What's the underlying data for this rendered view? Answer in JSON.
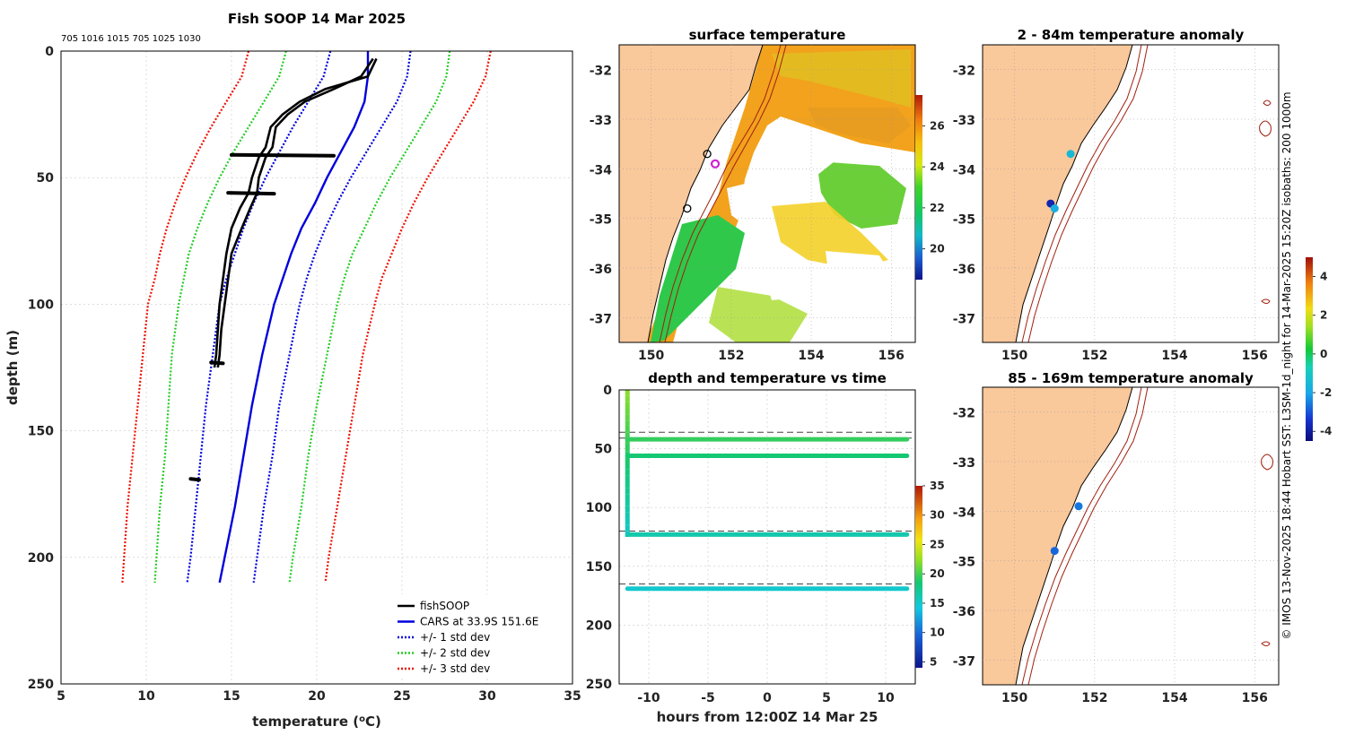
{
  "panels": {
    "profile_title": "Fish SOOP 14 Mar 2025",
    "profile_header": "705 1016 1015 705 1025 1030",
    "sst_title": "surface temperature",
    "anom1_title": "2 - 84m temperature anomaly",
    "anom2_title": "85 - 169m temperature anomaly",
    "timeseries_title": "depth and temperature vs time",
    "side_caption": "© IMOS 13-Nov-2025 18:44 Hobart SST: L3SM-1d_night for 14-Mar-2025 15:20Z isobaths: 200  1000m"
  },
  "colors": {
    "land": "#f9c89b",
    "fishsoop": "#000000",
    "cars": "#0000dd",
    "std1": "#0000dd",
    "std2": "#22cc22",
    "std3": "#ee1100",
    "isobath": "#a02010",
    "grid": "#c8c8c8"
  },
  "chart_data": [
    {
      "id": "profile",
      "type": "line",
      "title": "Fish SOOP 14 Mar 2025",
      "xlabel": "temperature (°C)",
      "ylabel": "depth (m)",
      "xlim": [
        5,
        35
      ],
      "ylim": [
        0,
        250
      ],
      "y_reversed": true,
      "xticks": [
        5,
        10,
        15,
        20,
        25,
        30,
        35
      ],
      "yticks": [
        0,
        50,
        100,
        150,
        200,
        250
      ],
      "legend": {
        "placement": "bottom-right",
        "entries": [
          {
            "label": "fishSOOP",
            "style": "solid",
            "color": "#000000"
          },
          {
            "label": "CARS at 33.9S 151.6E",
            "style": "solid",
            "color": "#0000dd"
          },
          {
            "label": "+/- 1 std dev",
            "style": "dotted",
            "color": "#0000dd"
          },
          {
            "label": "+/- 2 std dev",
            "style": "dotted",
            "color": "#22cc22"
          },
          {
            "label": "+/- 3 std dev",
            "style": "dotted",
            "color": "#ee1100"
          }
        ]
      },
      "depths": [
        0,
        10,
        20,
        30,
        40,
        50,
        60,
        70,
        80,
        90,
        100,
        120,
        140,
        160,
        180,
        200,
        210
      ],
      "series": [
        {
          "name": "CARS",
          "style": "solid",
          "color": "#0000dd",
          "temps": [
            23.0,
            23.0,
            22.8,
            22.2,
            21.4,
            20.6,
            19.9,
            19.1,
            18.5,
            18.0,
            17.5,
            16.8,
            16.2,
            15.7,
            15.2,
            14.6,
            14.3
          ]
        },
        {
          "name": "-1 std",
          "style": "dotted",
          "color": "#0000dd",
          "temps": [
            20.8,
            20.4,
            19.5,
            18.6,
            17.8,
            17.0,
            16.3,
            15.7,
            15.2,
            14.7,
            14.3,
            13.9,
            13.5,
            13.2,
            12.9,
            12.6,
            12.4
          ]
        },
        {
          "name": "+1 std",
          "style": "dotted",
          "color": "#0000dd",
          "temps": [
            25.5,
            25.3,
            24.7,
            23.8,
            22.9,
            22.0,
            21.2,
            20.5,
            19.9,
            19.4,
            19.0,
            18.4,
            17.8,
            17.4,
            16.9,
            16.5,
            16.3
          ]
        },
        {
          "name": "-2 std",
          "style": "dotted",
          "color": "#22cc22",
          "temps": [
            18.2,
            17.8,
            16.9,
            16.0,
            15.1,
            14.3,
            13.6,
            13.0,
            12.5,
            12.2,
            11.9,
            11.5,
            11.3,
            11.1,
            10.8,
            10.6,
            10.5
          ]
        },
        {
          "name": "+2 std",
          "style": "dotted",
          "color": "#22cc22",
          "temps": [
            27.8,
            27.6,
            27.0,
            26.1,
            25.2,
            24.3,
            23.5,
            22.8,
            22.1,
            21.6,
            21.2,
            20.6,
            20.0,
            19.5,
            19.1,
            18.6,
            18.4
          ]
        },
        {
          "name": "-3 std",
          "style": "dotted",
          "color": "#ee1100",
          "temps": [
            16.0,
            15.6,
            14.7,
            13.8,
            13.0,
            12.3,
            11.7,
            11.2,
            10.8,
            10.5,
            10.1,
            9.8,
            9.5,
            9.2,
            8.9,
            8.7,
            8.6
          ]
        },
        {
          "name": "+3 std",
          "style": "dotted",
          "color": "#ee1100",
          "temps": [
            30.2,
            29.9,
            29.2,
            28.3,
            27.4,
            26.5,
            25.7,
            25.0,
            24.4,
            23.8,
            23.4,
            22.7,
            22.2,
            21.7,
            21.2,
            20.7,
            20.5
          ]
        }
      ],
      "fishsoop_down": {
        "depths": [
          3,
          10,
          15,
          20,
          25,
          30,
          38,
          42,
          50,
          56,
          62,
          70,
          80,
          90,
          100,
          110,
          120,
          125
        ],
        "temps": [
          23.5,
          23.0,
          20.5,
          19.0,
          18.0,
          17.3,
          17.0,
          16.6,
          16.2,
          16.0,
          15.5,
          15.0,
          14.7,
          14.5,
          14.3,
          14.2,
          14.1,
          14.0
        ]
      },
      "fishsoop_up": {
        "depths": [
          3,
          10,
          15,
          20,
          25,
          30,
          38,
          42,
          50,
          56,
          62,
          70,
          80,
          90,
          100,
          110,
          120,
          125
        ],
        "temps": [
          23.3,
          22.6,
          21.0,
          19.3,
          18.3,
          17.6,
          17.4,
          17.0,
          16.6,
          16.5,
          16.1,
          15.6,
          15.0,
          14.8,
          14.6,
          14.4,
          14.3,
          14.2
        ]
      },
      "fishsoop_blobs": [
        {
          "depth": 41,
          "tmin": 15.0,
          "tmax": 21.0
        },
        {
          "depth": 56,
          "tmin": 14.8,
          "tmax": 17.5
        },
        {
          "depth": 123,
          "tmin": 13.8,
          "tmax": 14.5
        },
        {
          "depth": 169,
          "tmin": 12.6,
          "tmax": 13.1
        }
      ]
    },
    {
      "id": "timeseries",
      "type": "scatter",
      "title": "depth and temperature vs time",
      "xlabel": "hours from 12:00Z 14 Mar 25",
      "ylabel": "",
      "xlim": [
        -12.5,
        12.5
      ],
      "ylim": [
        0,
        250
      ],
      "y_reversed": true,
      "xticks": [
        -10,
        -5,
        0,
        5,
        10
      ],
      "yticks": [
        0,
        50,
        100,
        150,
        200,
        250
      ],
      "colorbar": {
        "min": 4,
        "max": 35,
        "ticks": [
          5,
          10,
          15,
          20,
          25,
          30,
          35
        ]
      },
      "segments": [
        {
          "name": "descent",
          "t0": -11.8,
          "t1": -11.8,
          "d0": 0,
          "d1": 125,
          "temp0": 22,
          "temp1": 15
        },
        {
          "name": "level-41m",
          "t0": -11.8,
          "t1": 11.8,
          "d0": 42,
          "d1": 42,
          "temp0": 19.5,
          "temp1": 19.5
        },
        {
          "name": "level-56m",
          "t0": -11.8,
          "t1": 11.8,
          "d0": 56,
          "d1": 56,
          "temp0": 18.5,
          "temp1": 18.5
        },
        {
          "name": "level-123m",
          "t0": -11.8,
          "t1": 11.8,
          "d0": 123,
          "d1": 123,
          "temp0": 16.2,
          "temp1": 16.2
        },
        {
          "name": "level-169m",
          "t0": -11.8,
          "t1": 11.8,
          "d0": 169,
          "d1": 169,
          "temp0": 15.0,
          "temp1": 15.0
        }
      ],
      "dashed_depths": [
        36,
        41,
        120,
        165
      ]
    }
  ],
  "maps": {
    "lon_ticks": [
      150,
      152,
      154,
      156
    ],
    "lat_ticks": [
      -32,
      -33,
      -34,
      -35,
      -36,
      -37
    ],
    "sst_colorbar": {
      "min": 18.5,
      "max": 27.5,
      "ticks": [
        20,
        22,
        24,
        26
      ]
    },
    "anom_colorbar": {
      "min": -4.5,
      "max": 5.0,
      "ticks": [
        -4,
        -2,
        0,
        2,
        4
      ]
    },
    "sst_markers": [
      {
        "lon": 151.6,
        "lat": -33.9,
        "kind": "magenta-ring"
      },
      {
        "lon": 151.4,
        "lat": -33.7,
        "kind": "black-ring"
      },
      {
        "lon": 150.9,
        "lat": -34.8,
        "kind": "black-ring"
      }
    ],
    "anom1_points": [
      {
        "lon": 151.4,
        "lat": -33.7,
        "value": -1.5
      },
      {
        "lon": 150.9,
        "lat": -34.7,
        "value": -3.8
      },
      {
        "lon": 151.0,
        "lat": -34.8,
        "value": -1.8
      }
    ],
    "anom2_points": [
      {
        "lon": 151.6,
        "lat": -33.9,
        "value": -2.6
      },
      {
        "lon": 151.0,
        "lat": -34.8,
        "value": -2.8
      }
    ]
  }
}
